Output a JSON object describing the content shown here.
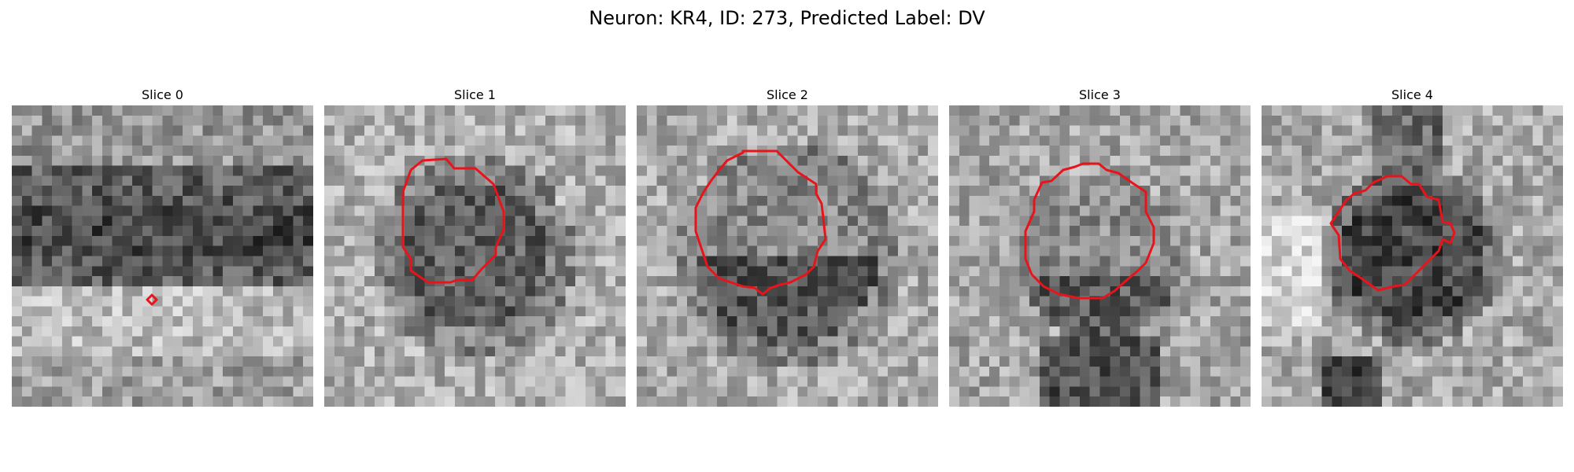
{
  "figure": {
    "title": "Neuron: KR4, ID: 273, Predicted Label: DV"
  },
  "panels": [
    {
      "title": "Slice 0",
      "seed": 11,
      "pattern": "band"
    },
    {
      "title": "Slice 1",
      "seed": 23,
      "pattern": "dark-disc"
    },
    {
      "title": "Slice 2",
      "seed": 37,
      "pattern": "dark-lower"
    },
    {
      "title": "Slice 3",
      "seed": 53,
      "pattern": "dark-bottom"
    },
    {
      "title": "Slice 4",
      "seed": 71,
      "pattern": "dark-blobs"
    }
  ],
  "colors": {
    "contour": "#e8141c",
    "background": "#ffffff"
  }
}
